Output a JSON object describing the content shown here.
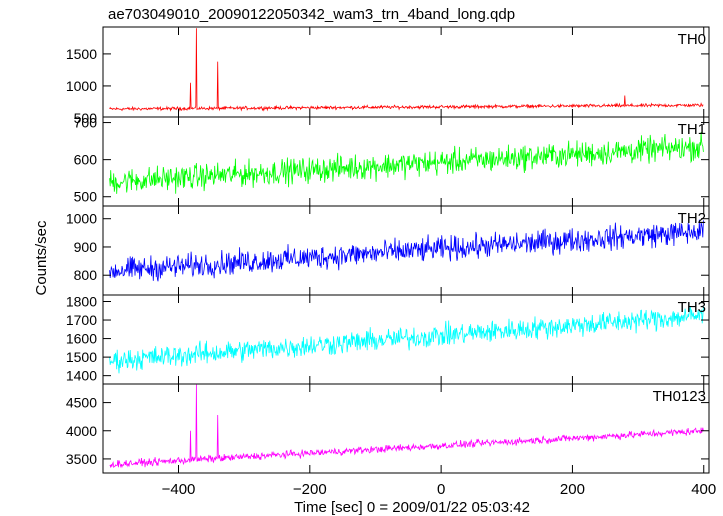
{
  "title": "ae703049010_20090122050342_wam3_trn_4band_long.qdp",
  "xlabel": "Time [sec] 0 = 2009/01/22 05:03:42",
  "ylabel": "Counts/sec",
  "chart_data": {
    "type": "line",
    "title": "ae703049010_20090122050342_wam3_trn_4band_long.qdp",
    "xlabel": "Time [sec] 0 = 2009/01/22 05:03:42",
    "ylabel": "Counts/sec",
    "xlim": [
      -515,
      408
    ],
    "x_ticks": [
      -400,
      -200,
      0,
      200,
      400
    ],
    "x_tick_labels": [
      "−400",
      "−200",
      "0",
      "200",
      "400"
    ],
    "x_data_range": [
      -505,
      400
    ],
    "grid": false,
    "panels": [
      {
        "name": "TH0",
        "color": "#ff0000",
        "ylim": [
          515,
          1920
        ],
        "y_ticks": [
          500,
          1000,
          1500
        ],
        "y_tick_labels": [
          "500",
          "1000",
          "1500"
        ],
        "baseline_start": 640,
        "baseline_end": 700,
        "noise": 18,
        "spikes": [
          {
            "x": -382,
            "value": 1050
          },
          {
            "x": -373,
            "value": 1900
          },
          {
            "x": -340,
            "value": 1380
          },
          {
            "x": 280,
            "value": 850
          }
        ]
      },
      {
        "name": "TH1",
        "color": "#00ff00",
        "ylim": [
          475,
          715
        ],
        "y_ticks": [
          500,
          600,
          700
        ],
        "y_tick_labels": [
          "500",
          "600",
          "700"
        ],
        "baseline_start": 540,
        "baseline_end": 635,
        "noise": 24,
        "spikes": []
      },
      {
        "name": "TH2",
        "color": "#0000ff",
        "ylim": [
          730,
          1045
        ],
        "y_ticks": [
          800,
          900,
          1000
        ],
        "y_tick_labels": [
          "800",
          "900",
          "1000"
        ],
        "baseline_start": 815,
        "baseline_end": 955,
        "noise": 30,
        "spikes": []
      },
      {
        "name": "TH3",
        "color": "#00ffff",
        "ylim": [
          1355,
          1835
        ],
        "y_ticks": [
          1400,
          1500,
          1600,
          1700,
          1800
        ],
        "y_tick_labels": [
          "1400",
          "1500",
          "1600",
          "1700",
          "1800"
        ],
        "baseline_start": 1480,
        "baseline_end": 1725,
        "noise": 42,
        "spikes": []
      },
      {
        "name": "TH0123",
        "color": "#ff00ff",
        "ylim": [
          3250,
          4830
        ],
        "y_ticks": [
          3500,
          4000,
          4500
        ],
        "y_tick_labels": [
          "3500",
          "4000",
          "4500"
        ],
        "baseline_start": 3400,
        "baseline_end": 4000,
        "noise": 45,
        "spikes": [
          {
            "x": -382,
            "value": 4000
          },
          {
            "x": -373,
            "value": 4820
          },
          {
            "x": -340,
            "value": 4280
          }
        ]
      }
    ]
  }
}
